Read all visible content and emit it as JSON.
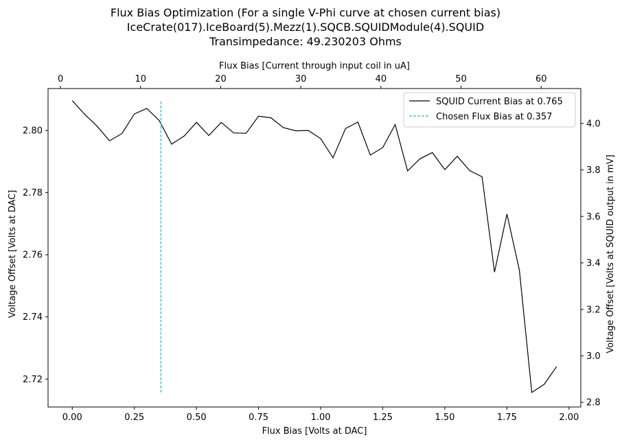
{
  "chart_data": {
    "type": "line",
    "title": [
      "Flux Bias Optimization (For a single V-Phi curve at chosen current bias)",
      "IceCrate(017).IceBoard(5).Mezz(1).SQCB.SQUIDModule(4).SQUID",
      "Transimpedance: 49.230203 Ohms"
    ],
    "xlabel": "Flux Bias [Volts at DAC]",
    "ylabel": "Voltage Offset [Volts at DAC]",
    "x2label": "Flux Bias [Current through input coil in uA]",
    "y2label": "Voltage Offset [Volts at SQUID output in mV]",
    "xlim": [
      -0.0975,
      2.0475
    ],
    "ylim": [
      2.711,
      2.8135
    ],
    "x2lim": [
      -1.55,
      64.95
    ],
    "y2lim": [
      2.78,
      4.15
    ],
    "xticks": [
      "0.00",
      "0.25",
      "0.50",
      "0.75",
      "1.00",
      "1.25",
      "1.50",
      "1.75",
      "2.00"
    ],
    "yticks": [
      "2.72",
      "2.74",
      "2.76",
      "2.78",
      "2.80"
    ],
    "x2ticks": [
      "0",
      "10",
      "20",
      "30",
      "40",
      "50",
      "60"
    ],
    "y2ticks": [
      "2.8",
      "3.0",
      "3.2",
      "3.4",
      "3.6",
      "3.8",
      "4.0"
    ],
    "grid": false,
    "legend_position": "top-right",
    "series": [
      {
        "name": "SQUID Current Bias at 0.765",
        "style": "solid",
        "color": "#000000",
        "x": [
          0.0,
          0.05,
          0.1,
          0.15,
          0.2,
          0.25,
          0.3,
          0.35,
          0.4,
          0.45,
          0.5,
          0.55,
          0.6,
          0.65,
          0.7,
          0.75,
          0.8,
          0.85,
          0.9,
          0.95,
          1.0,
          1.05,
          1.1,
          1.15,
          1.2,
          1.25,
          1.3,
          1.35,
          1.4,
          1.45,
          1.5,
          1.55,
          1.6,
          1.65,
          1.7,
          1.75,
          1.8,
          1.85,
          1.9,
          1.95
        ],
        "y": [
          2.8096,
          2.8052,
          2.8014,
          2.7967,
          2.799,
          2.8053,
          2.8071,
          2.8032,
          2.7956,
          2.7982,
          2.8026,
          2.7984,
          2.8026,
          2.7992,
          2.7991,
          2.8046,
          2.8041,
          2.8009,
          2.7999,
          2.8,
          2.7974,
          2.7912,
          2.8006,
          2.8027,
          2.7921,
          2.7945,
          2.8019,
          2.787,
          2.7909,
          2.7929,
          2.7874,
          2.7917,
          2.7871,
          2.7851,
          2.7544,
          2.7731,
          2.7551,
          2.7157,
          2.7183,
          2.724
        ]
      },
      {
        "name": "Chosen Flux Bias at 0.357",
        "style": "dashed",
        "color": "#17becf",
        "x": [
          0.357,
          0.357
        ],
        "y": [
          2.7157,
          2.8096
        ]
      }
    ]
  }
}
